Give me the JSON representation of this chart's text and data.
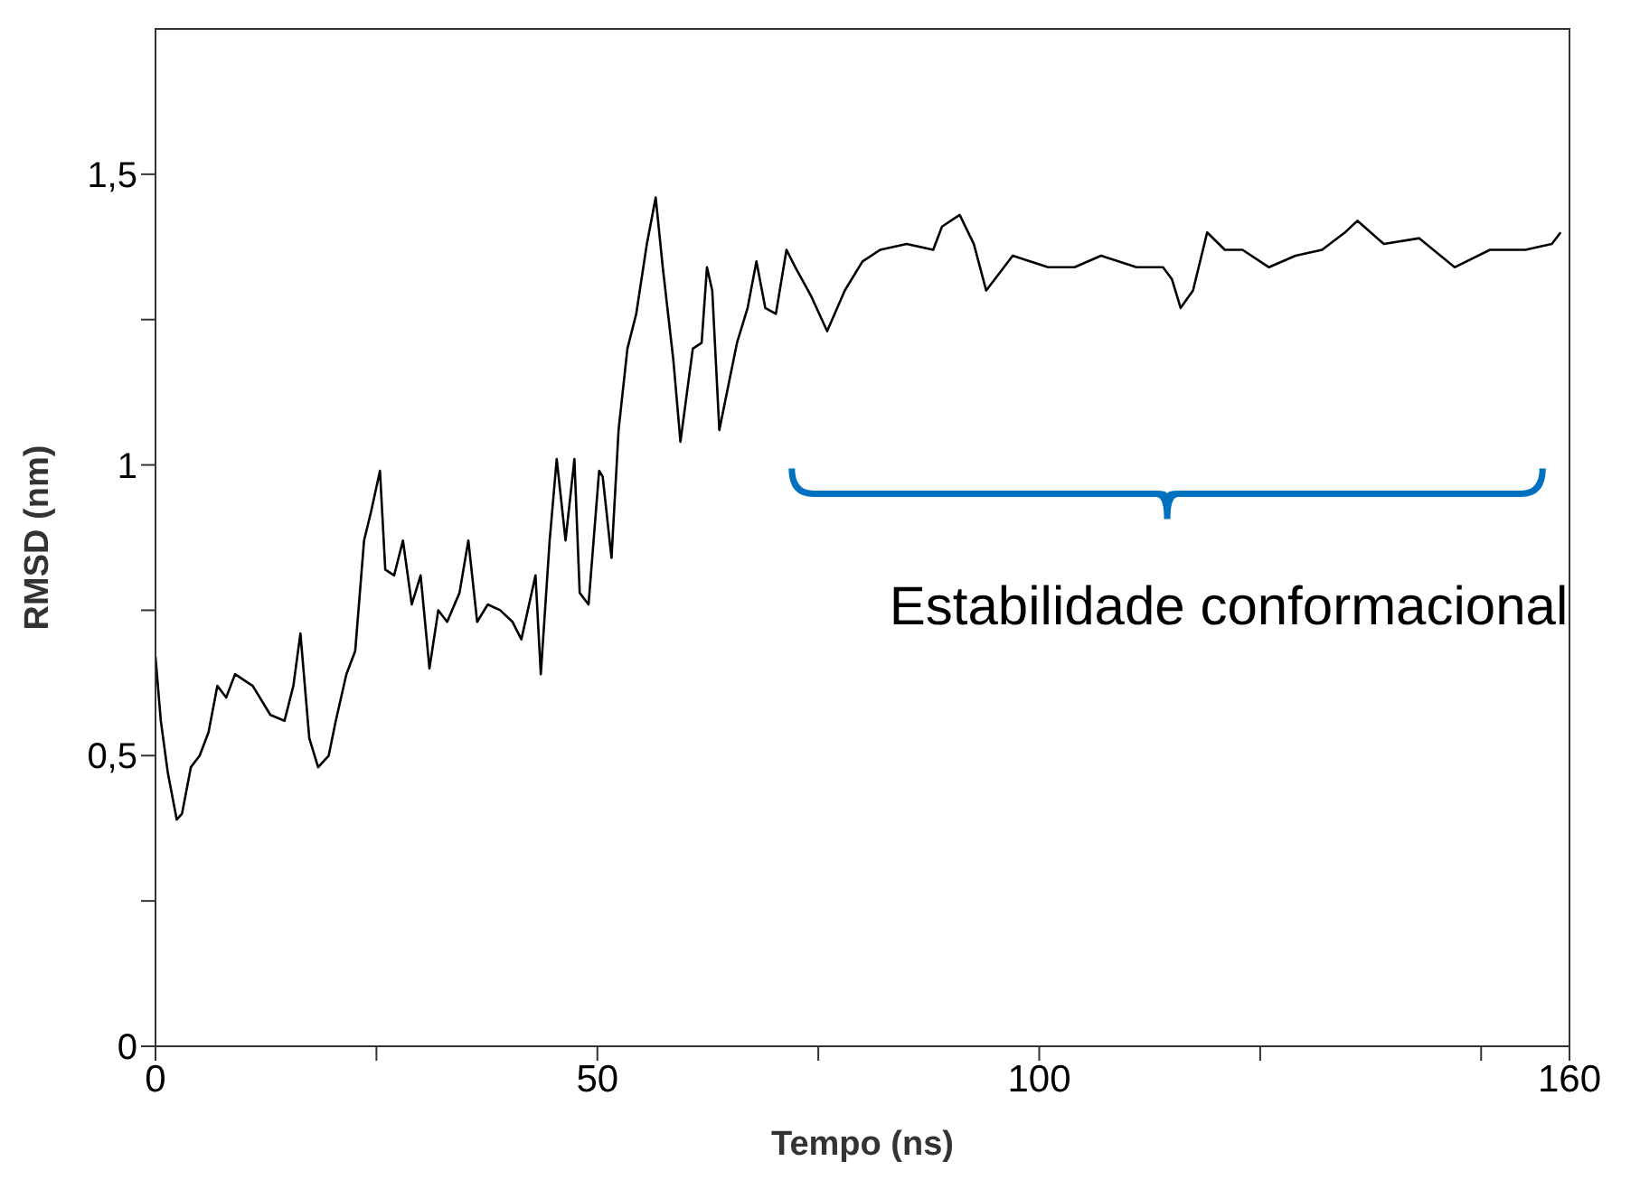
{
  "chart_data": {
    "type": "line",
    "xlabel": "Tempo (ns)",
    "ylabel": "RMSD (nm)",
    "x": [
      0,
      0.6,
      1.4,
      2.4,
      3,
      4,
      5,
      6,
      7,
      8,
      9,
      11,
      13,
      14.6,
      15.6,
      16.4,
      17.4,
      18.4,
      19.6,
      20.4,
      21.6,
      22.6,
      23.6,
      24.4,
      25.4,
      26,
      27,
      28,
      29,
      30,
      31,
      32,
      33,
      34.4,
      35.4,
      36.4,
      37.6,
      39,
      40.4,
      41.4,
      43,
      43.6,
      44.6,
      45.4,
      46.4,
      47.4,
      48,
      49,
      50.2,
      50.6,
      51.6,
      52.4,
      53.4,
      54.4,
      55.6,
      56.6,
      57.4,
      58.6,
      59.4,
      60.8,
      61.8,
      62.4,
      63,
      63.8,
      65,
      65.8,
      67,
      68,
      69,
      70.2,
      71.4,
      72.4,
      74.2,
      76,
      78,
      80,
      82,
      85,
      88,
      89,
      91,
      92.6,
      94,
      97,
      101,
      104,
      107,
      111,
      114,
      115,
      116,
      117.4,
      119,
      121,
      123,
      126,
      129,
      132,
      134.6,
      136,
      139,
      143,
      147,
      151,
      155,
      158,
      159
    ],
    "series": [
      {
        "color": "#000000",
        "values": [
          0.67,
          0.56,
          0.47,
          0.39,
          0.4,
          0.48,
          0.5,
          0.54,
          0.62,
          0.6,
          0.64,
          0.62,
          0.57,
          0.56,
          0.62,
          0.71,
          0.53,
          0.48,
          0.5,
          0.56,
          0.64,
          0.68,
          0.87,
          0.92,
          0.99,
          0.82,
          0.81,
          0.87,
          0.76,
          0.81,
          0.65,
          0.75,
          0.73,
          0.78,
          0.87,
          0.73,
          0.76,
          0.75,
          0.73,
          0.7,
          0.81,
          0.64,
          0.87,
          1.01,
          0.87,
          1.01,
          0.78,
          0.76,
          0.99,
          0.98,
          0.84,
          1.06,
          1.2,
          1.26,
          1.38,
          1.46,
          1.34,
          1.18,
          1.04,
          1.2,
          1.21,
          1.34,
          1.3,
          1.06,
          1.15,
          1.21,
          1.27,
          1.35,
          1.27,
          1.26,
          1.37,
          1.34,
          1.29,
          1.23,
          1.3,
          1.35,
          1.37,
          1.38,
          1.37,
          1.41,
          1.43,
          1.38,
          1.3,
          1.36,
          1.34,
          1.34,
          1.36,
          1.34,
          1.34,
          1.32,
          1.27,
          1.3,
          1.4,
          1.37,
          1.37,
          1.34,
          1.36,
          1.37,
          1.4,
          1.42,
          1.38,
          1.39,
          1.34,
          1.37,
          1.37,
          1.38,
          1.4
        ]
      }
    ],
    "xlim": [
      0,
      160
    ],
    "xticks": [
      0,
      {
        "value": 25,
        "label": null
      },
      50,
      {
        "value": 75,
        "label": null
      },
      100,
      {
        "value": 125,
        "label": null
      },
      {
        "value": 150,
        "label": null
      },
      160
    ],
    "ylim": [
      0,
      1.75
    ],
    "yticks": [
      0,
      {
        "value": 0.25,
        "label": null
      },
      {
        "value": 0.5,
        "label": "0,5"
      },
      {
        "value": 0.75,
        "label": null
      },
      1,
      {
        "value": 1.25,
        "label": null
      },
      {
        "value": 1.5,
        "label": "1,5"
      }
    ],
    "annotations": [
      "Estabilidade conformacional"
    ],
    "grid": false,
    "legend": false,
    "marker": "none",
    "line_style": "solid"
  }
}
